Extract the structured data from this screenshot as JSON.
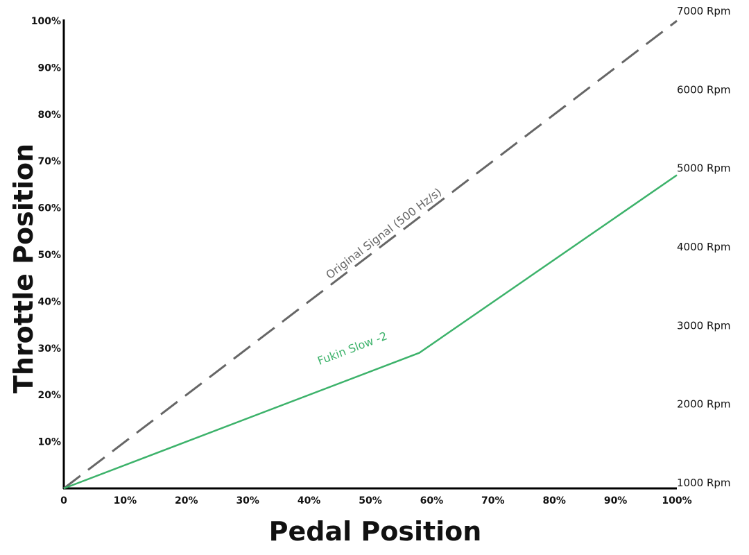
{
  "chart_data": {
    "type": "line",
    "xlabel": "Pedal Position",
    "ylabel": "Throttle Position",
    "xlim": [
      0,
      100
    ],
    "ylim": [
      0,
      100
    ],
    "x_ticks": [
      "0",
      "10%",
      "20%",
      "30%",
      "40%",
      "50%",
      "60%",
      "70%",
      "80%",
      "90%",
      "100%"
    ],
    "y_ticks": [
      "10%",
      "20%",
      "30%",
      "40%",
      "50%",
      "60%",
      "70%",
      "80%",
      "90%",
      "100%"
    ],
    "right_axis_ticks": [
      "1000 Rpm",
      "2000 Rpm",
      "3000 Rpm",
      "4000 Rpm",
      "5000 Rpm",
      "6000 Rpm",
      "7000 Rpm"
    ],
    "right_axis_values": [
      1000,
      2000,
      3000,
      4000,
      5000,
      6000,
      7000
    ],
    "series": [
      {
        "name": "Original Signal (500 Hz/s)",
        "style": "dashed",
        "color": "#666666",
        "x": [
          0,
          100
        ],
        "y": [
          0,
          100
        ]
      },
      {
        "name": "Fukin Slow -2",
        "style": "solid",
        "color": "#3cb26a",
        "x": [
          0,
          58,
          100
        ],
        "y": [
          0,
          29,
          67
        ]
      }
    ],
    "grid": false
  }
}
